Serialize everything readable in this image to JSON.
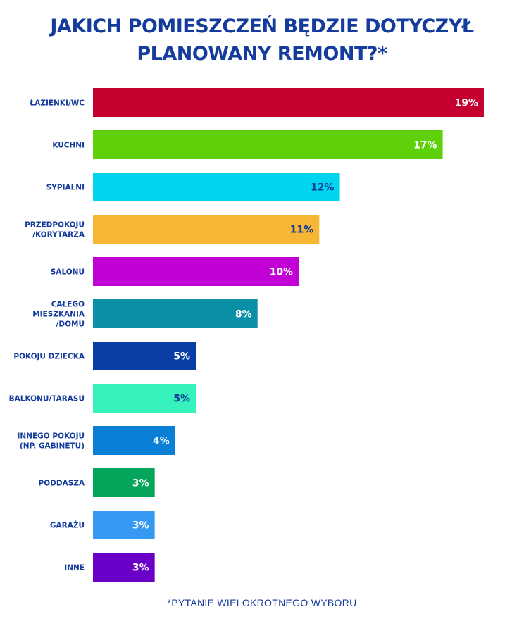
{
  "title": {
    "line1": "JAKICH POMIESZCZEŃ BĘDZIE DOTYCZYŁ",
    "line2": "PLANOWANY REMONT?*"
  },
  "footnote": "*PYTANIE WIELOKROTNEGO WYBORU",
  "chart_data": {
    "type": "bar",
    "orientation": "horizontal",
    "title": "JAKICH POMIESZCZEŃ BĘDZIE DOTYCZYŁ PLANOWANY REMONT?*",
    "categories": [
      [
        "ŁAZIENKI/WC"
      ],
      [
        "KUCHNI"
      ],
      [
        "SYPIALNI"
      ],
      [
        "PRZEDPOKOJU",
        "/KORYTARZA"
      ],
      [
        "SALONU"
      ],
      [
        "CAŁEGO",
        "MIESZKANIA",
        "/DOMU"
      ],
      [
        "POKOJU DZIECKA"
      ],
      [
        "BALKONU/TARASU"
      ],
      [
        "INNEGO POKOJU",
        "(NP. GABINETU)"
      ],
      [
        "PODDASZA"
      ],
      [
        "GARAŻU"
      ],
      [
        "INNE"
      ]
    ],
    "values": [
      19,
      17,
      12,
      11,
      10,
      8,
      5,
      5,
      4,
      3,
      3,
      3
    ],
    "value_labels": [
      "19%",
      "17%",
      "12%",
      "11%",
      "10%",
      "8%",
      "5%",
      "5%",
      "4%",
      "3%",
      "3%",
      "3%"
    ],
    "colors": [
      "#c4002f",
      "#5fd10a",
      "#00d5ee",
      "#f7b634",
      "#c100d6",
      "#0a90a6",
      "#0a3ea5",
      "#36f2bd",
      "#0a7fd6",
      "#03a55a",
      "#3599f4",
      "#6a00c8"
    ],
    "label_colors": [
      "#ffffff",
      "#ffffff",
      "#143c9c",
      "#143c9c",
      "#ffffff",
      "#ffffff",
      "#ffffff",
      "#143c9c",
      "#ffffff",
      "#ffffff",
      "#ffffff",
      "#ffffff"
    ],
    "xlim": [
      0,
      19
    ],
    "text_color": "#143c9c"
  }
}
